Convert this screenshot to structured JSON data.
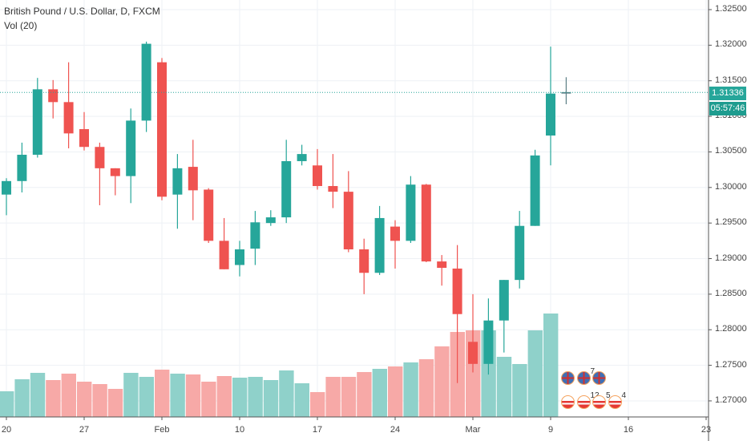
{
  "header": {
    "symbol_title": "British Pound / U.S. Dollar, D, FXCM",
    "volume_indicator": "Vol (20)"
  },
  "price_axis": {
    "labels": [
      "1.32500",
      "1.32000",
      "1.31500",
      "1.31000",
      "1.30500",
      "1.30000",
      "1.29500",
      "1.29000",
      "1.28500",
      "1.28000",
      "1.27500",
      "1.27000"
    ],
    "current_price": "1.31336",
    "countdown": "05:57:46"
  },
  "time_axis": {
    "labels": [
      "20",
      "27",
      "Feb",
      "10",
      "17",
      "24",
      "Mar",
      "9",
      "16",
      "23"
    ]
  },
  "colors": {
    "up": "#26a69a",
    "down": "#ef5350",
    "up_vol": "#8fd1ca",
    "down_vol": "#f7a9a7",
    "grid": "#eef1f5"
  },
  "events": {
    "row1": [
      {
        "type": "uk",
        "count": ""
      },
      {
        "type": "uk",
        "count": "7"
      },
      {
        "type": "uk",
        "count": ""
      }
    ],
    "row2": [
      {
        "type": "us",
        "count": ""
      },
      {
        "type": "us",
        "count": "12"
      },
      {
        "type": "us",
        "count": "5"
      },
      {
        "type": "us",
        "count": "4"
      }
    ]
  },
  "chart_data": {
    "type": "candlestick",
    "title": "British Pound / U.S. Dollar, D, FXCM",
    "ylim": [
      1.2665,
      1.3265
    ],
    "x_start": "Jan 20",
    "ohlc": [
      [
        1.299,
        1.3013,
        1.2961,
        1.3009
      ],
      [
        1.3009,
        1.3063,
        1.2993,
        1.3046
      ],
      [
        1.3046,
        1.3154,
        1.3042,
        1.3138
      ],
      [
        1.3138,
        1.3151,
        1.3097,
        1.312
      ],
      [
        1.312,
        1.3176,
        1.3055,
        1.3076
      ],
      [
        1.3082,
        1.3106,
        1.3052,
        1.3057
      ],
      [
        1.3057,
        1.3063,
        1.2975,
        1.3027
      ],
      [
        1.3027,
        1.3027,
        1.2989,
        1.3016
      ],
      [
        1.3016,
        1.3111,
        1.2978,
        1.3094
      ],
      [
        1.3094,
        1.3205,
        1.3078,
        1.3202
      ],
      [
        1.3176,
        1.3182,
        1.2982,
        1.2987
      ],
      [
        1.299,
        1.3047,
        1.2942,
        1.3027
      ],
      [
        1.3029,
        1.3067,
        1.2954,
        1.2996
      ],
      [
        1.2997,
        1.2999,
        1.2922,
        1.2925
      ],
      [
        1.2925,
        1.2957,
        1.2885,
        1.2885
      ],
      [
        1.2891,
        1.2925,
        1.2875,
        1.2913
      ],
      [
        1.2914,
        1.2967,
        1.2891,
        1.2951
      ],
      [
        1.295,
        1.2968,
        1.2946,
        1.2958
      ],
      [
        1.2958,
        1.3067,
        1.295,
        1.3037
      ],
      [
        1.3037,
        1.306,
        1.3031,
        1.3047
      ],
      [
        1.3031,
        1.3054,
        1.2997,
        1.3002
      ],
      [
        1.3002,
        1.3047,
        1.2971,
        1.2994
      ],
      [
        1.2994,
        1.3023,
        1.2909,
        1.2913
      ],
      [
        1.2913,
        1.2928,
        1.285,
        1.288
      ],
      [
        1.288,
        1.2974,
        1.2877,
        1.2957
      ],
      [
        1.2945,
        1.2954,
        1.2886,
        1.2925
      ],
      [
        1.2925,
        1.3016,
        1.2922,
        1.3004
      ],
      [
        1.3004,
        1.3005,
        1.2895,
        1.2896
      ],
      [
        1.2896,
        1.2905,
        1.2862,
        1.2887
      ],
      [
        1.2886,
        1.2919,
        1.2725,
        1.2822
      ],
      [
        1.2783,
        1.285,
        1.274,
        1.2752
      ],
      [
        1.2752,
        1.2844,
        1.2737,
        1.2813
      ],
      [
        1.2813,
        1.287,
        1.2768,
        1.287
      ],
      [
        1.287,
        1.2967,
        1.2858,
        1.2946
      ],
      [
        1.2946,
        1.3053,
        1.2946,
        1.3045
      ],
      [
        1.3073,
        1.3198,
        1.3031,
        1.3132
      ],
      [
        1.3132,
        1.3155,
        1.3117,
        1.3134
      ]
    ],
    "volume": [
      32,
      47,
      55,
      46,
      54,
      44,
      41,
      35,
      55,
      50,
      59,
      54,
      53,
      44,
      51,
      49,
      50,
      46,
      58,
      42,
      31,
      50,
      50,
      56,
      60,
      63,
      68,
      72,
      88,
      106,
      108,
      108,
      75,
      66,
      108,
      129,
      null
    ]
  }
}
